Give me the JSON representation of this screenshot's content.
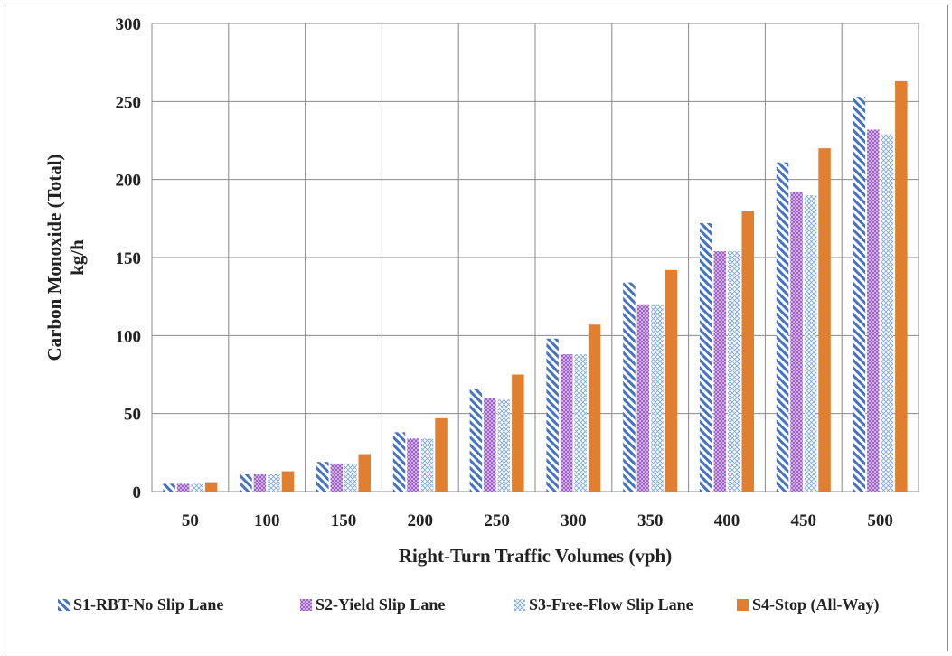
{
  "chart_data": {
    "type": "bar",
    "title": "",
    "xlabel": "Right-Turn  Traffic Volumes (vph)",
    "ylabel_line1": "Carbon Monoxide (Total)",
    "ylabel_line2": "kg/h",
    "ylim": [
      0,
      300
    ],
    "yticks": [
      "0",
      "50",
      "100",
      "150",
      "200",
      "250",
      "300"
    ],
    "categories": [
      "50",
      "100",
      "150",
      "200",
      "250",
      "300",
      "350",
      "400",
      "450",
      "500"
    ],
    "grid": true,
    "legend_position": "bottom",
    "series": [
      {
        "name": "S1-RBT-No Slip Lane",
        "color": "#4472c4",
        "pattern": "diagonal-stripes",
        "values": [
          5,
          11,
          19,
          38,
          66,
          98,
          134,
          172,
          211,
          253
        ]
      },
      {
        "name": "S2-Yield Slip Lane",
        "color": "#9e5fc8",
        "pattern": "dense-crosshatch",
        "values": [
          5,
          11,
          18,
          34,
          60,
          88,
          120,
          154,
          192,
          232
        ]
      },
      {
        "name": "S3-Free-Flow Slip Lane",
        "color": "#7aa6e0",
        "pattern": "light-crosshatch",
        "values": [
          5,
          11,
          18,
          34,
          59,
          88,
          120,
          154,
          190,
          229
        ]
      },
      {
        "name": "S4-Stop (All-Way)",
        "color": "#e07f30",
        "pattern": "solid",
        "values": [
          6,
          13,
          24,
          47,
          75,
          107,
          142,
          180,
          220,
          263
        ]
      }
    ]
  }
}
